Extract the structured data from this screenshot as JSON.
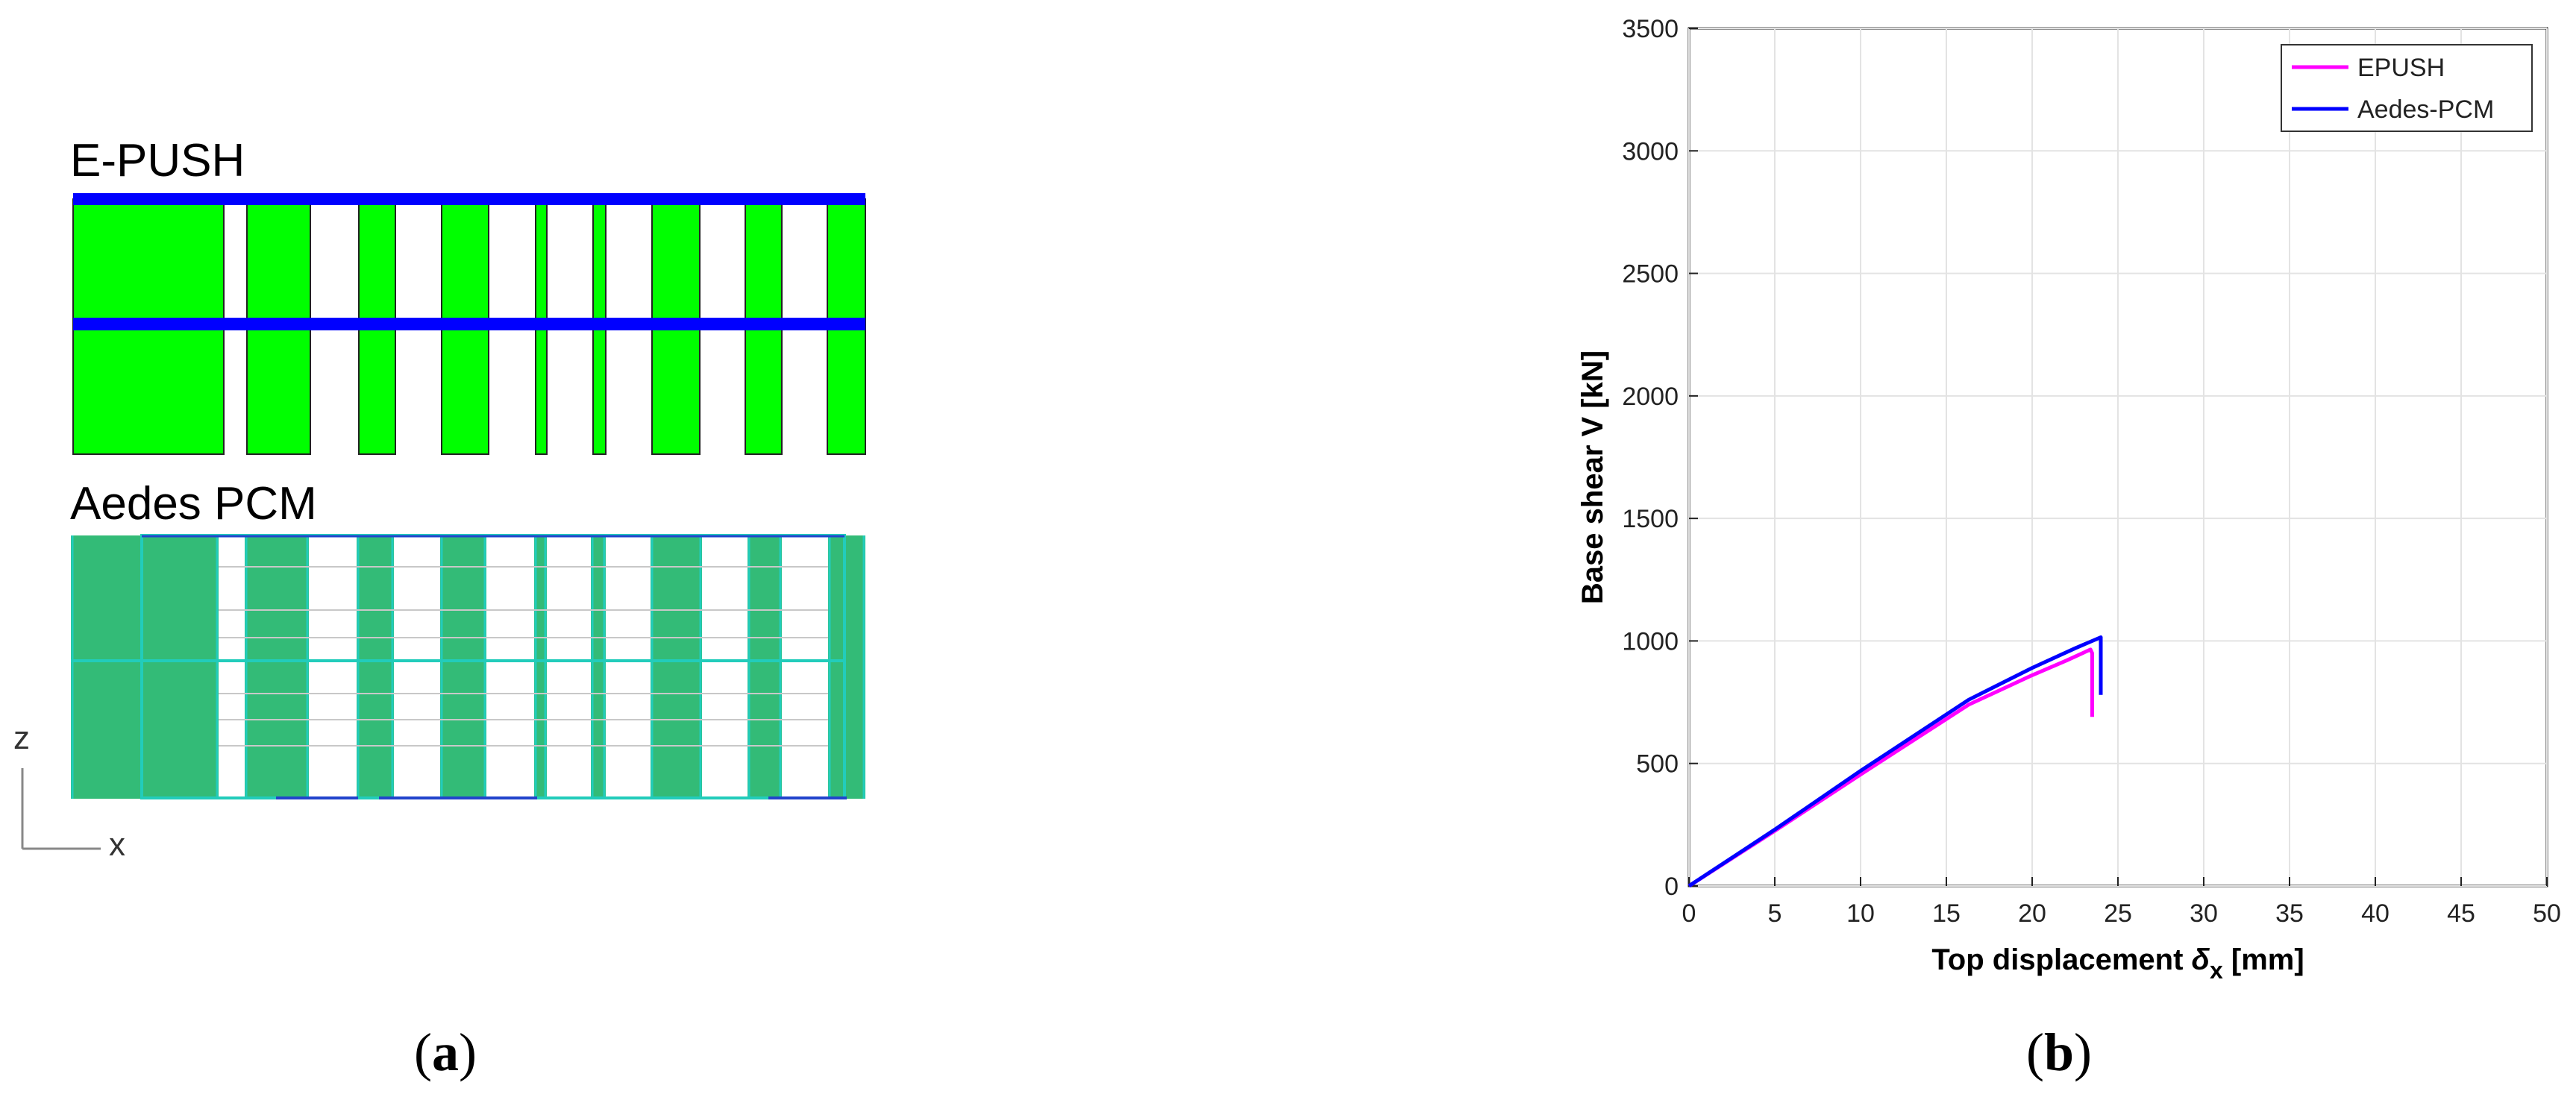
{
  "panel_a": {
    "epush_label": "E-PUSH",
    "aedes_label": "Aedes PCM",
    "axis_z": "z",
    "axis_x": "x",
    "caption_open": "(",
    "caption_letter": "a",
    "caption_close": ")",
    "colors": {
      "pier_green": "#00ff00",
      "beam_blue": "#0000ff",
      "fem_green": "#33bb77",
      "frame_teal": "#22ccbb"
    }
  },
  "panel_b": {
    "caption_open": "(",
    "caption_letter": "b",
    "caption_close": ")"
  },
  "chart_data": {
    "type": "line",
    "title": "",
    "xlabel": "Top displacement δx [mm]",
    "xlabel_main": "Top displacement ",
    "xlabel_symbol": "δ",
    "xlabel_sub": "x",
    "xlabel_unit": " [mm]",
    "ylabel": "Base shear V [kN]",
    "xlim": [
      0,
      50
    ],
    "ylim": [
      0,
      3500
    ],
    "xticks": [
      0,
      5,
      10,
      15,
      20,
      25,
      30,
      35,
      40,
      45,
      50
    ],
    "yticks": [
      0,
      500,
      1000,
      1500,
      2000,
      2500,
      3000,
      3500
    ],
    "grid": true,
    "legend_position": "top-right",
    "series": [
      {
        "name": "EPUSH",
        "color": "#ff00ff",
        "x": [
          0,
          5,
          10,
          16.3,
          20,
          22,
          23.4,
          23.5,
          23.5
        ],
        "y": [
          0,
          225,
          455,
          740,
          860,
          920,
          965,
          950,
          690
        ]
      },
      {
        "name": "Aedes-PCM",
        "color": "#0000ff",
        "x": [
          0,
          5,
          10,
          16.3,
          20,
          22.5,
          24.0,
          24.0
        ],
        "y": [
          0,
          230,
          470,
          760,
          890,
          970,
          1015,
          780
        ]
      }
    ]
  }
}
